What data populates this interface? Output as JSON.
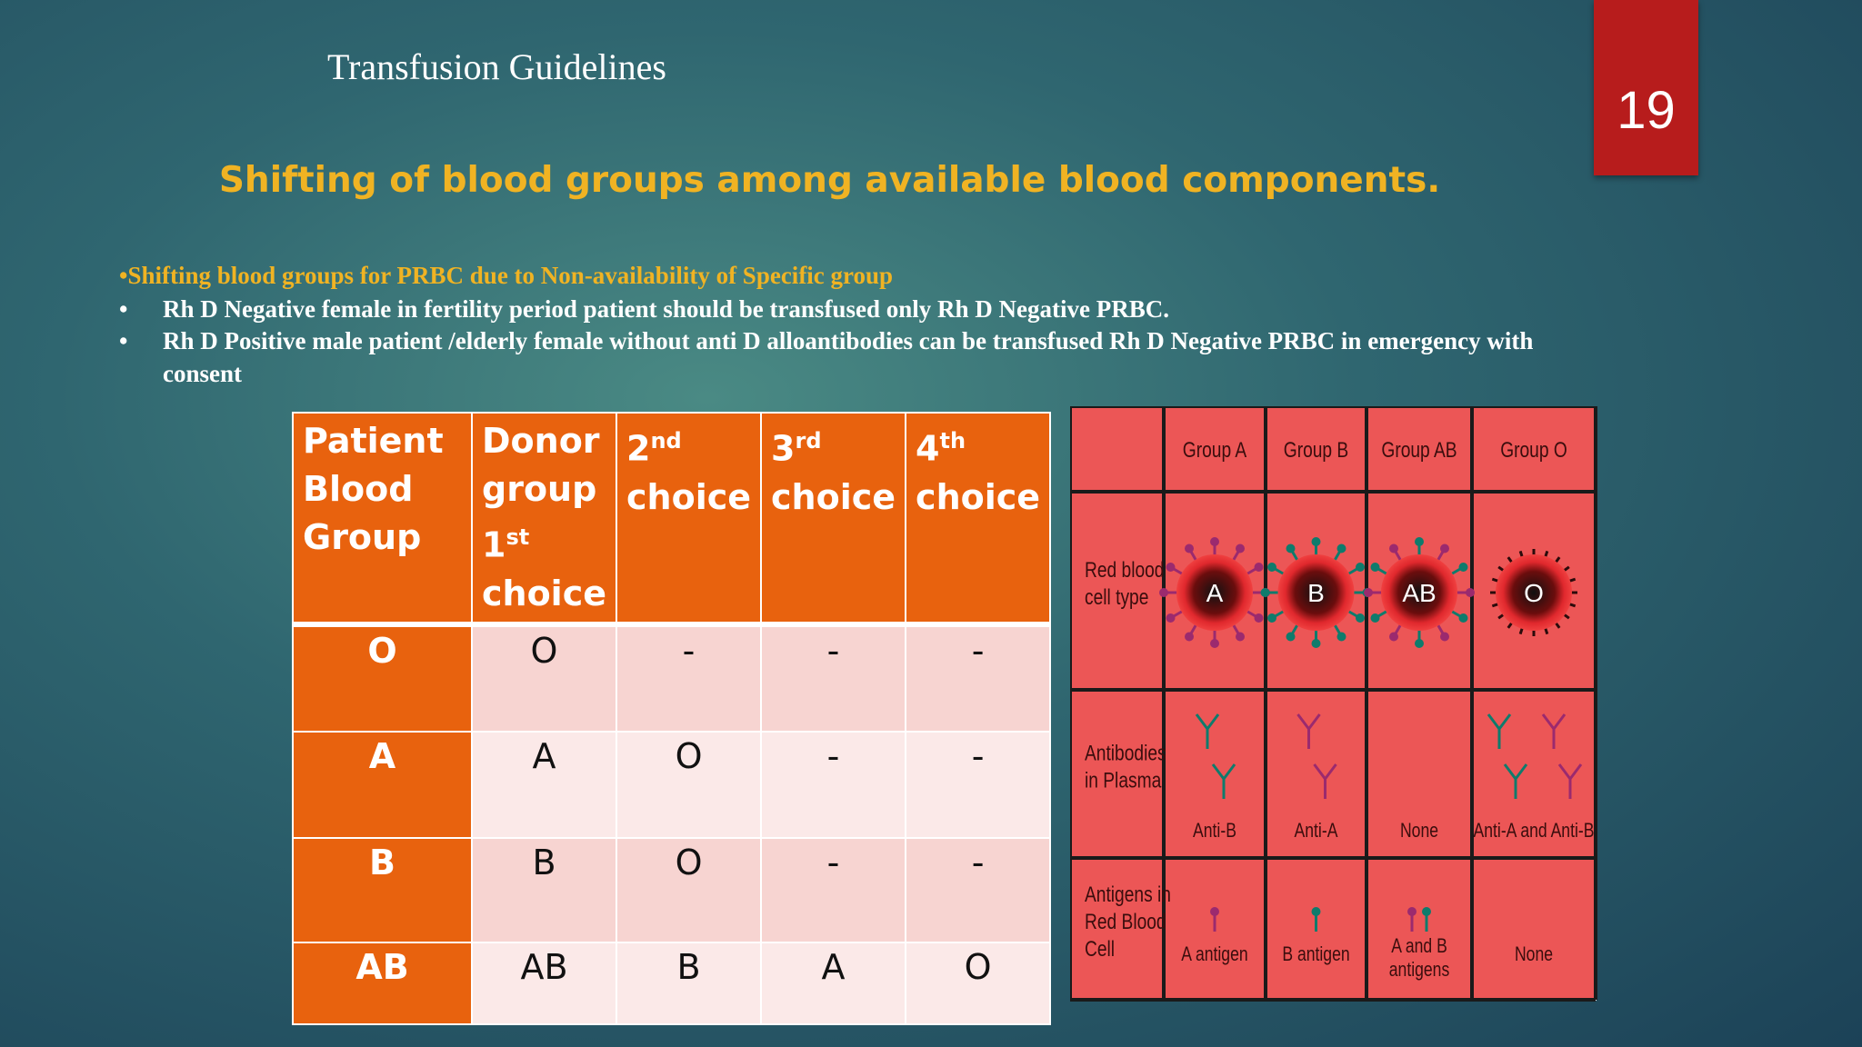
{
  "header": {
    "title": "Transfusion Guidelines",
    "page_number": "19"
  },
  "heading": "Shifting of blood groups among available blood components.",
  "bullets": [
    {
      "marker": "•",
      "text": "Shifting blood groups for PRBC due to Non-availability of Specific group"
    },
    {
      "marker": "•",
      "text": "Rh D Negative female in fertility period patient should be transfused only Rh D Negative PRBC."
    },
    {
      "marker": "•",
      "text": "Rh D Positive male patient /elderly female without anti D alloantibodies can be transfused Rh D Negative PRBC in emergency with consent"
    }
  ],
  "table": {
    "header": [
      [
        {
          "text": "Patient Blood Group"
        }
      ],
      [
        {
          "text": "Donor group"
        },
        {
          "text": "1"
        },
        {
          "text": "st",
          "sup": true
        },
        {
          "text": "choice"
        }
      ],
      [
        {
          "text": "2"
        },
        {
          "text": "nd",
          "sup": true
        },
        {
          "text": "choice"
        }
      ],
      [
        {
          "text": "3"
        },
        {
          "text": "rd",
          "sup": true
        },
        {
          "text": "choice"
        }
      ],
      [
        {
          "text": "4"
        },
        {
          "text": "th",
          "sup": true
        },
        {
          "text": "choice"
        }
      ]
    ],
    "rows": [
      [
        "O",
        "O",
        "-",
        "-",
        "-"
      ],
      [
        "A",
        "A",
        "O",
        "-",
        "-"
      ],
      [
        "B",
        "B",
        "O",
        "-",
        "-"
      ],
      [
        "AB",
        "AB",
        "B",
        "A",
        "O"
      ]
    ]
  },
  "diagram": {
    "groups": [
      "Group A",
      "Group B",
      "Group AB",
      "Group O"
    ],
    "row_labels": [
      [
        "Red blood",
        "cell type"
      ],
      [
        "Antibodies",
        "in Plasma"
      ],
      [
        "Antigens in",
        "Red Blood",
        "Cell"
      ]
    ],
    "cell_types": [
      "A",
      "B",
      "AB",
      "O"
    ],
    "antibodies": [
      "Anti-B",
      "Anti-A",
      "None",
      "Anti-A and Anti-B"
    ],
    "antigens": [
      [
        "A antigen"
      ],
      [
        "B antigen"
      ],
      [
        "A and B",
        "antigens"
      ],
      [
        "None"
      ]
    ]
  }
}
